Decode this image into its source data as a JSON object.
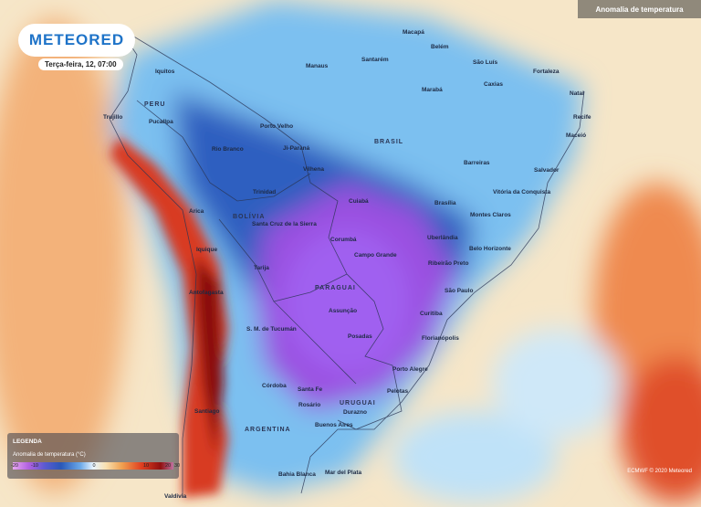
{
  "logo": "METEORED",
  "date": "Terça-feira, 12, 07:00",
  "layer_title": "Anomalia de temperatura",
  "legend": {
    "heading": "LEGENDA",
    "subtitle": "Anomalia de temperatura (°C)",
    "ticks": [
      "-20",
      "-10",
      "0",
      "10",
      "20",
      "30"
    ]
  },
  "credit": "ECMWF © 2020 Meteored",
  "countries": [
    "PERU",
    "BRASIL",
    "BOLÍVIA",
    "PARAGUAI",
    "URUGUAI",
    "ARGENTINA"
  ],
  "cities": [
    "Macapá",
    "Belém",
    "São Luís",
    "Fortaleza",
    "Manaus",
    "Santarém",
    "Iquitos",
    "Marabá",
    "Caxias",
    "Natal",
    "Recife",
    "Maceió",
    "Trujillo",
    "Pucallpa",
    "Porto Velho",
    "Rio Branco",
    "Ji-Paraná",
    "Vilhena",
    "Barreiras",
    "Salvador",
    "Trinidad",
    "Cuiabá",
    "Brasília",
    "Vitória da Conquista",
    "Arica",
    "Montes Claros",
    "Santa Cruz de la Sierra",
    "Corumbá",
    "Campo Grande",
    "Uberlândia",
    "Belo Horizonte",
    "Iquique",
    "Ribeirão Preto",
    "Tarija",
    "Antofagasta",
    "São Paulo",
    "Curitiba",
    "Assunção",
    "S. M. de Tucumán",
    "Posadas",
    "Florianópolis",
    "Porto Alegre",
    "Córdoba",
    "Santa Fe",
    "Pelotas",
    "Rosário",
    "Santiago",
    "Durazno",
    "Buenos Aires",
    "Mar del Plata",
    "Bahia Blanca",
    "Valdivia"
  ]
}
